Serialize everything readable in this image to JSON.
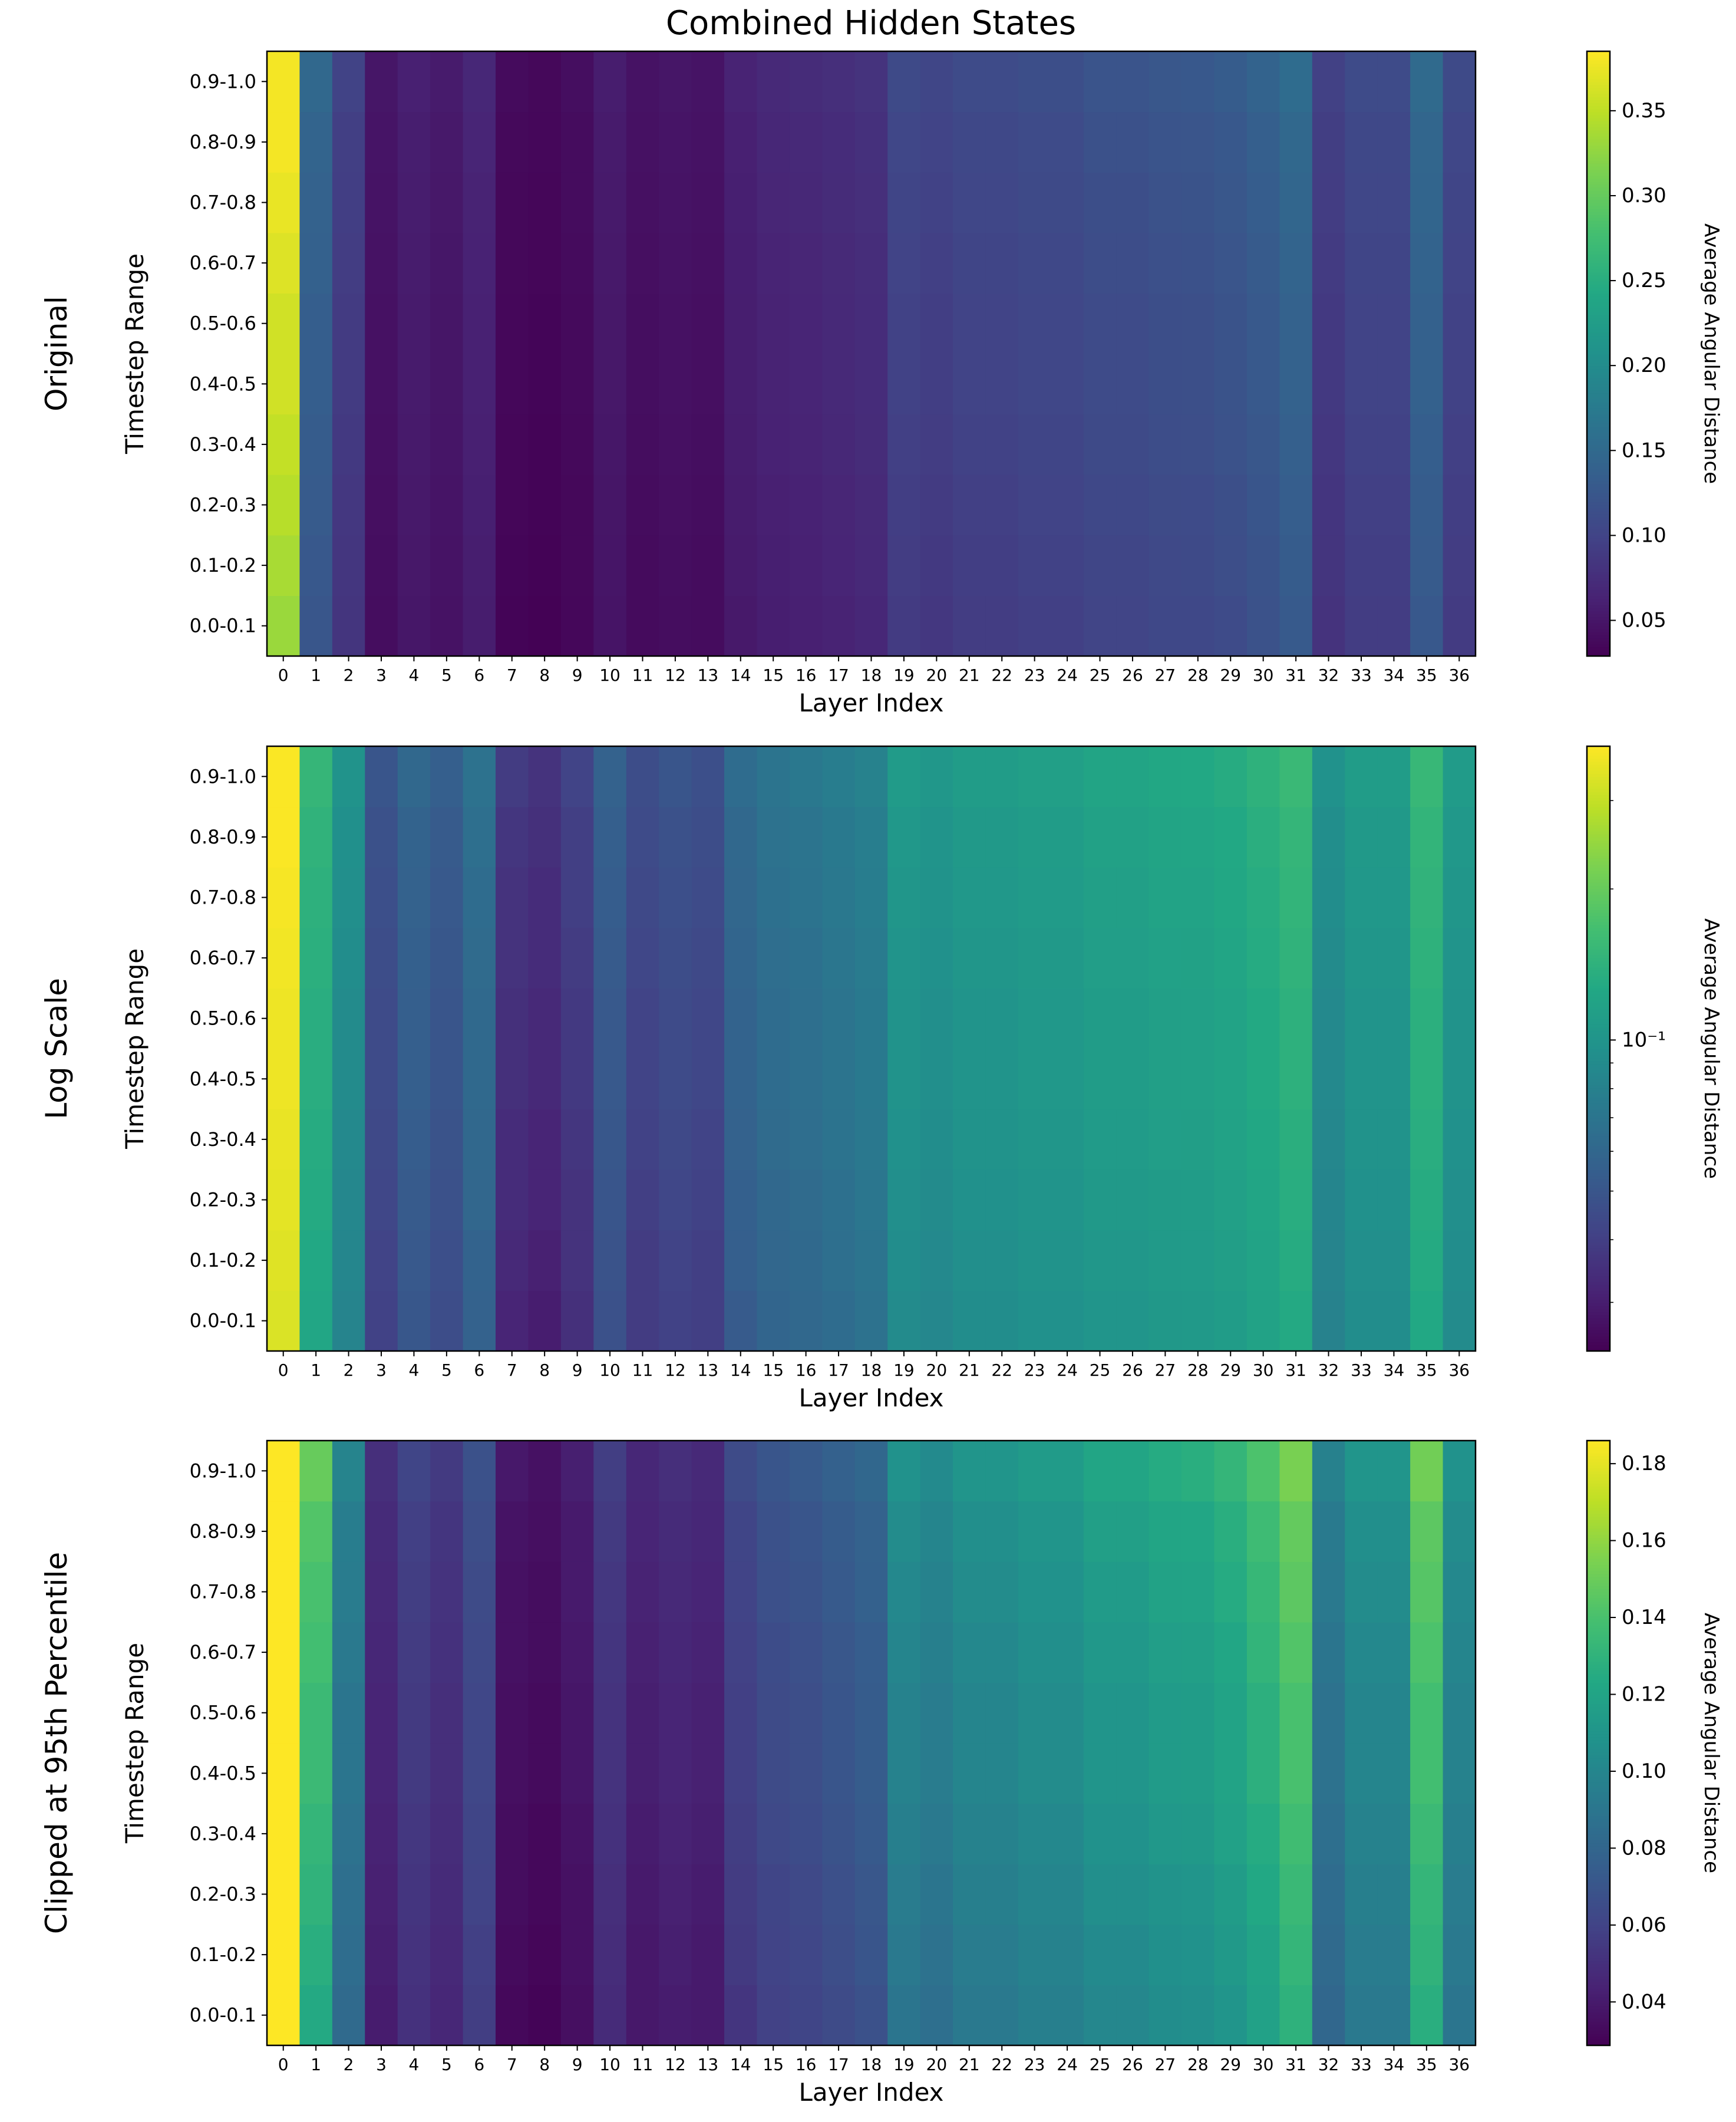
{
  "chart_data": {
    "type": "heatmap",
    "title": "Combined Hidden States",
    "xlabel": "Layer Index",
    "ylabel": "Timestep Range",
    "colormap": "viridis",
    "x_categories": [
      "0",
      "1",
      "2",
      "3",
      "4",
      "5",
      "6",
      "7",
      "8",
      "9",
      "10",
      "11",
      "12",
      "13",
      "14",
      "15",
      "16",
      "17",
      "18",
      "19",
      "20",
      "21",
      "22",
      "23",
      "24",
      "25",
      "26",
      "27",
      "28",
      "29",
      "30",
      "31",
      "32",
      "33",
      "34",
      "35",
      "36"
    ],
    "y_categories": [
      "0.0-0.1",
      "0.1-0.2",
      "0.2-0.3",
      "0.3-0.4",
      "0.4-0.5",
      "0.5-0.6",
      "0.6-0.7",
      "0.7-0.8",
      "0.8-0.9",
      "0.9-1.0"
    ],
    "values": [
      [
        0.331,
        0.124,
        0.083,
        0.041,
        0.051,
        0.046,
        0.057,
        0.032,
        0.03,
        0.035,
        0.048,
        0.039,
        0.041,
        0.04,
        0.053,
        0.059,
        0.061,
        0.064,
        0.068,
        0.09,
        0.086,
        0.092,
        0.092,
        0.096,
        0.096,
        0.101,
        0.101,
        0.105,
        0.106,
        0.11,
        0.118,
        0.129,
        0.081,
        0.092,
        0.092,
        0.127,
        0.09
      ],
      [
        0.338,
        0.127,
        0.085,
        0.042,
        0.052,
        0.047,
        0.058,
        0.033,
        0.031,
        0.036,
        0.049,
        0.039,
        0.042,
        0.04,
        0.055,
        0.06,
        0.062,
        0.066,
        0.07,
        0.092,
        0.088,
        0.094,
        0.094,
        0.098,
        0.098,
        0.103,
        0.103,
        0.107,
        0.108,
        0.113,
        0.12,
        0.132,
        0.083,
        0.094,
        0.094,
        0.13,
        0.092
      ],
      [
        0.346,
        0.13,
        0.086,
        0.043,
        0.053,
        0.048,
        0.06,
        0.034,
        0.032,
        0.036,
        0.05,
        0.04,
        0.043,
        0.041,
        0.056,
        0.061,
        0.063,
        0.067,
        0.071,
        0.094,
        0.09,
        0.096,
        0.096,
        0.1,
        0.1,
        0.106,
        0.106,
        0.109,
        0.11,
        0.115,
        0.123,
        0.134,
        0.084,
        0.096,
        0.096,
        0.132,
        0.094
      ],
      [
        0.353,
        0.132,
        0.088,
        0.044,
        0.054,
        0.049,
        0.061,
        0.034,
        0.032,
        0.037,
        0.051,
        0.041,
        0.044,
        0.042,
        0.057,
        0.063,
        0.065,
        0.069,
        0.073,
        0.096,
        0.092,
        0.098,
        0.098,
        0.102,
        0.102,
        0.108,
        0.108,
        0.112,
        0.113,
        0.118,
        0.125,
        0.137,
        0.086,
        0.098,
        0.098,
        0.135,
        0.096
      ],
      [
        0.36,
        0.135,
        0.09,
        0.045,
        0.055,
        0.05,
        0.062,
        0.035,
        0.033,
        0.038,
        0.052,
        0.042,
        0.045,
        0.043,
        0.058,
        0.064,
        0.066,
        0.07,
        0.074,
        0.098,
        0.094,
        0.1,
        0.1,
        0.104,
        0.104,
        0.11,
        0.11,
        0.114,
        0.115,
        0.12,
        0.128,
        0.14,
        0.088,
        0.1,
        0.1,
        0.138,
        0.098
      ],
      [
        0.36,
        0.135,
        0.09,
        0.045,
        0.055,
        0.05,
        0.062,
        0.035,
        0.033,
        0.038,
        0.052,
        0.042,
        0.045,
        0.043,
        0.058,
        0.064,
        0.066,
        0.07,
        0.074,
        0.098,
        0.094,
        0.1,
        0.1,
        0.104,
        0.104,
        0.11,
        0.11,
        0.114,
        0.115,
        0.12,
        0.128,
        0.14,
        0.088,
        0.1,
        0.1,
        0.138,
        0.098
      ],
      [
        0.367,
        0.138,
        0.092,
        0.046,
        0.056,
        0.051,
        0.063,
        0.036,
        0.034,
        0.039,
        0.053,
        0.043,
        0.046,
        0.044,
        0.059,
        0.065,
        0.067,
        0.071,
        0.075,
        0.1,
        0.096,
        0.102,
        0.102,
        0.106,
        0.106,
        0.112,
        0.112,
        0.116,
        0.117,
        0.122,
        0.131,
        0.143,
        0.09,
        0.102,
        0.102,
        0.141,
        0.1
      ],
      [
        0.374,
        0.14,
        0.094,
        0.047,
        0.057,
        0.052,
        0.064,
        0.036,
        0.034,
        0.04,
        0.054,
        0.044,
        0.047,
        0.045,
        0.06,
        0.067,
        0.069,
        0.073,
        0.077,
        0.102,
        0.098,
        0.104,
        0.104,
        0.108,
        0.108,
        0.114,
        0.114,
        0.119,
        0.12,
        0.125,
        0.133,
        0.146,
        0.092,
        0.104,
        0.104,
        0.144,
        0.102
      ],
      [
        0.38,
        0.143,
        0.095,
        0.048,
        0.058,
        0.053,
        0.066,
        0.037,
        0.035,
        0.04,
        0.055,
        0.045,
        0.048,
        0.046,
        0.061,
        0.068,
        0.07,
        0.074,
        0.078,
        0.104,
        0.1,
        0.106,
        0.106,
        0.11,
        0.11,
        0.117,
        0.117,
        0.121,
        0.122,
        0.127,
        0.136,
        0.148,
        0.093,
        0.106,
        0.106,
        0.146,
        0.104
      ],
      [
        0.38,
        0.149,
        0.099,
        0.05,
        0.061,
        0.055,
        0.068,
        0.039,
        0.036,
        0.042,
        0.057,
        0.046,
        0.05,
        0.047,
        0.064,
        0.07,
        0.073,
        0.077,
        0.081,
        0.108,
        0.103,
        0.11,
        0.11,
        0.114,
        0.114,
        0.121,
        0.121,
        0.125,
        0.127,
        0.132,
        0.141,
        0.154,
        0.097,
        0.11,
        0.11,
        0.152,
        0.108
      ]
    ],
    "panels": [
      {
        "row_label": "Original",
        "scale": "linear",
        "vmin": 0.029,
        "vmax": 0.385,
        "colorbar_label": "Average Angular Distance",
        "colorbar_ticks": [
          0.05,
          0.1,
          0.15,
          0.2,
          0.25,
          0.3,
          0.35
        ],
        "colorbar_tick_labels": [
          "0.05",
          "0.10",
          "0.15",
          "0.20",
          "0.25",
          "0.30",
          "0.35"
        ]
      },
      {
        "row_label": "Log Scale",
        "scale": "log",
        "vmin": 0.024,
        "vmax": 0.385,
        "colorbar_label": "Average Angular Distance",
        "colorbar_ticks": [
          0.1
        ],
        "colorbar_tick_labels": [
          "10⁻¹"
        ],
        "colorbar_minor_ticks": [
          0.03,
          0.04,
          0.05,
          0.06,
          0.07,
          0.08,
          0.09,
          0.2,
          0.3
        ]
      },
      {
        "row_label": "Clipped at 95th Percentile",
        "scale": "linear",
        "vmin": 0.0287,
        "vmax": 0.186,
        "colorbar_label": "Average Angular Distance",
        "colorbar_ticks": [
          0.04,
          0.06,
          0.08,
          0.1,
          0.12,
          0.14,
          0.16,
          0.18
        ],
        "colorbar_tick_labels": [
          "0.04",
          "0.06",
          "0.08",
          "0.10",
          "0.12",
          "0.14",
          "0.16",
          "0.18"
        ]
      }
    ]
  }
}
